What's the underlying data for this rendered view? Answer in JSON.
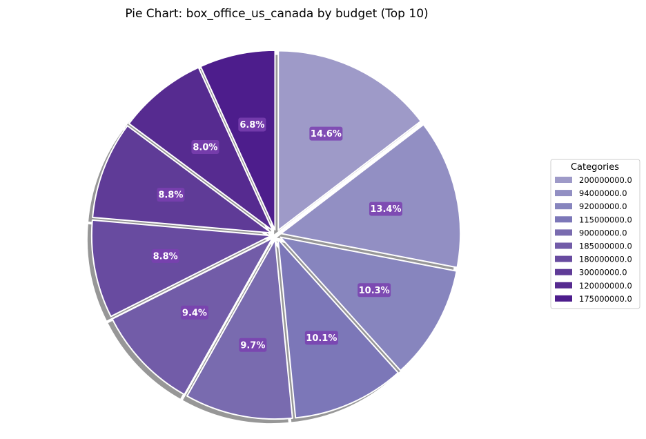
{
  "chart_data": {
    "type": "pie",
    "title": "Pie Chart: box_office_us_canada by budget (Top 10)",
    "legend_title": "Categories",
    "legend_position": "right",
    "start_angle_deg": 90,
    "direction": "clockwise",
    "slices": [
      {
        "category": "200000000.0",
        "percent": 14.6,
        "label": "14.6%",
        "color": "#9e9ac8"
      },
      {
        "category": "94000000.0",
        "percent": 13.4,
        "label": "13.4%",
        "color": "#928fc3"
      },
      {
        "category": "92000000.0",
        "percent": 10.3,
        "label": "10.3%",
        "color": "#8785be"
      },
      {
        "category": "115000000.0",
        "percent": 10.1,
        "label": "10.1%",
        "color": "#7c77b8"
      },
      {
        "category": "90000000.0",
        "percent": 9.7,
        "label": "9.7%",
        "color": "#796baf"
      },
      {
        "category": "185000000.0",
        "percent": 9.4,
        "label": "9.4%",
        "color": "#725ca8"
      },
      {
        "category": "180000000.0",
        "percent": 8.8,
        "label": "8.8%",
        "color": "#684ba0"
      },
      {
        "category": "30000000.0",
        "percent": 8.8,
        "label": "8.8%",
        "color": "#5f3b97"
      },
      {
        "category": "120000000.0",
        "percent": 8.0,
        "label": "8.0%",
        "color": "#562b90"
      },
      {
        "category": "175000000.0",
        "percent": 6.8,
        "label": "6.8%",
        "color": "#4d1d8c"
      }
    ],
    "label_box_color": "#7a3fb0",
    "shadow_color": "#8c8c8c"
  }
}
